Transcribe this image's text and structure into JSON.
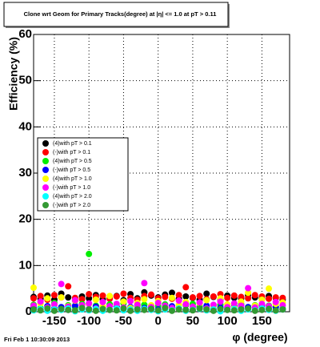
{
  "chart_data": {
    "type": "scatter",
    "title": "Clone wrt Geom for Primary Tracks(degree) at |η| <= 1.0 at pT > 0.11",
    "x_label": "φ (degree)",
    "y_label": "Efficiency (%)",
    "footer": "Fri Feb  1 10:30:09 2013",
    "xlim": [
      -180,
      190
    ],
    "ylim": [
      0,
      60
    ],
    "xticks": [
      -150,
      -100,
      -50,
      0,
      50,
      100,
      150
    ],
    "yticks": [
      0,
      10,
      20,
      30,
      40,
      50,
      60
    ],
    "grid": true,
    "legend": "left",
    "x": [
      -180,
      -170,
      -160,
      -150,
      -140,
      -130,
      -120,
      -110,
      -100,
      -90,
      -80,
      -70,
      -60,
      -50,
      -40,
      -30,
      -20,
      -10,
      0,
      10,
      20,
      30,
      40,
      50,
      60,
      70,
      80,
      90,
      100,
      110,
      120,
      130,
      140,
      150,
      160,
      170,
      180
    ],
    "series": [
      {
        "name": "(4)with pT > 0.1",
        "color": "#000000",
        "values": [
          3.2,
          2.8,
          3.5,
          2.6,
          3.9,
          3.1,
          2.4,
          3.3,
          2.9,
          3.6,
          2.7,
          3.0,
          3.4,
          2.5,
          3.8,
          2.9,
          4.2,
          3.5,
          3.1,
          3.7,
          4.1,
          2.8,
          3.3,
          3.0,
          2.6,
          3.9,
          3.2,
          2.7,
          3.5,
          3.0,
          2.9,
          3.6,
          3.1,
          2.8,
          3.4,
          3.0,
          2.6
        ]
      },
      {
        "name": "(-)with pT > 0.1",
        "color": "#ff0000",
        "values": [
          2.9,
          3.4,
          2.6,
          3.6,
          3.1,
          5.5,
          3.0,
          2.7,
          3.8,
          3.2,
          3.5,
          2.8,
          3.3,
          3.9,
          3.0,
          2.6,
          3.4,
          3.7,
          2.9,
          3.2,
          2.8,
          3.6,
          5.3,
          3.1,
          3.4,
          2.7,
          3.3,
          3.8,
          3.0,
          3.5,
          3.2,
          2.9,
          3.6,
          3.3,
          2.8,
          3.1,
          3.0
        ]
      },
      {
        "name": "(4)with pT > 0.5",
        "color": "#00ee00",
        "values": [
          1.5,
          0.8,
          1.2,
          1.9,
          0.6,
          1.4,
          1.0,
          1.7,
          12.5,
          1.3,
          0.9,
          1.6,
          1.1,
          1.8,
          0.7,
          1.3,
          1.5,
          0.9,
          1.2,
          1.6,
          1.0,
          0.8,
          1.4,
          1.7,
          1.1,
          0.9,
          1.3,
          1.5,
          0.8,
          1.2,
          1.6,
          1.0,
          1.4,
          0.9,
          1.3,
          1.1,
          0.7
        ]
      },
      {
        "name": "(-)with pT > 0.5",
        "color": "#0000ff",
        "values": [
          0.9,
          0.5,
          1.2,
          0.7,
          1.0,
          0.4,
          1.3,
          0.8,
          0.6,
          1.1,
          0.9,
          0.5,
          1.2,
          0.7,
          1.0,
          0.6,
          0.8,
          1.1,
          0.5,
          0.9,
          1.2,
          0.7,
          0.4,
          1.0,
          0.8,
          1.3,
          0.6,
          0.9,
          0.5,
          1.1,
          0.7,
          1.0,
          0.8,
          1.4,
          0.6,
          0.9,
          0.5
        ]
      },
      {
        "name": "(4)with pT > 1.0",
        "color": "#ffff00",
        "values": [
          5.2,
          1.8,
          2.9,
          1.5,
          3.1,
          1.2,
          2.4,
          0.9,
          1.7,
          2.6,
          1.1,
          3.4,
          1.6,
          2.2,
          0.8,
          1.9,
          2.7,
          1.4,
          2.3,
          1.0,
          3.0,
          1.5,
          2.1,
          0.7,
          1.8,
          2.5,
          1.2,
          2.9,
          1.6,
          0.9,
          2.2,
          4.1,
          1.3,
          2.6,
          5.0,
          1.7,
          2.0
        ]
      },
      {
        "name": "(-)with pT > 1.0",
        "color": "#ff00ff",
        "values": [
          1.3,
          2.2,
          0.9,
          1.6,
          6.0,
          1.1,
          2.5,
          1.4,
          1.8,
          0.7,
          2.1,
          1.2,
          1.7,
          0.9,
          2.3,
          1.5,
          6.2,
          1.0,
          1.9,
          1.3,
          0.8,
          2.4,
          1.6,
          1.1,
          2.0,
          0.7,
          1.5,
          2.2,
          1.0,
          1.8,
          1.3,
          5.1,
          0.9,
          1.7,
          1.2,
          2.1,
          1.4
        ]
      },
      {
        "name": "(4)with pT > 2.0",
        "color": "#00ffff",
        "values": [
          0.3,
          0.6,
          0.2,
          0.5,
          0.4,
          0.7,
          0.1,
          0.5,
          0.3,
          0.6,
          0.2,
          0.4,
          0.7,
          0.3,
          0.5,
          0.2,
          0.6,
          0.4,
          0.1,
          0.5,
          0.3,
          0.7,
          0.2,
          0.4,
          0.6,
          0.3,
          0.5,
          0.1,
          0.4,
          0.6,
          0.2,
          0.5,
          0.3,
          0.7,
          0.4,
          0.2,
          0.5
        ]
      },
      {
        "name": "(-)with pT > 2.0",
        "color": "#339933",
        "values": [
          0.5,
          0.3,
          0.7,
          0.2,
          0.6,
          0.4,
          0.3,
          0.8,
          0.5,
          0.2,
          0.6,
          0.4,
          0.3,
          0.7,
          0.2,
          0.5,
          0.4,
          0.6,
          0.3,
          0.8,
          0.2,
          0.5,
          0.4,
          0.3,
          0.7,
          0.5,
          0.2,
          0.6,
          0.4,
          0.3,
          0.5,
          0.7,
          0.2,
          0.4,
          0.6,
          0.3,
          0.5
        ]
      }
    ]
  }
}
